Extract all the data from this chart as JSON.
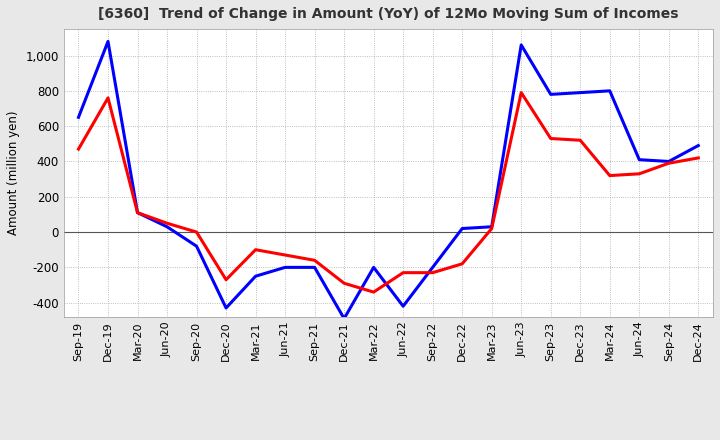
{
  "title": "[6360]  Trend of Change in Amount (YoY) of 12Mo Moving Sum of Incomes",
  "ylabel": "Amount (million yen)",
  "ylim": [
    -480,
    1150
  ],
  "yticks": [
    -400,
    -200,
    0,
    200,
    400,
    600,
    800,
    1000
  ],
  "background_color": "#e8e8e8",
  "plot_bg_color": "#ffffff",
  "grid_color": "#aaaaaa",
  "x_labels": [
    "Sep-19",
    "Dec-19",
    "Mar-20",
    "Jun-20",
    "Sep-20",
    "Dec-20",
    "Mar-21",
    "Jun-21",
    "Sep-21",
    "Dec-21",
    "Mar-22",
    "Jun-22",
    "Sep-22",
    "Dec-22",
    "Mar-23",
    "Jun-23",
    "Sep-23",
    "Dec-23",
    "Mar-24",
    "Jun-24",
    "Sep-24",
    "Dec-24"
  ],
  "ordinary_income": [
    650,
    1080,
    110,
    30,
    -80,
    -430,
    -250,
    -200,
    -200,
    -490,
    -200,
    -420,
    -200,
    20,
    30,
    1060,
    780,
    790,
    800,
    410,
    400,
    490
  ],
  "net_income": [
    470,
    760,
    110,
    50,
    0,
    -270,
    -100,
    -130,
    -160,
    -290,
    -340,
    -230,
    -230,
    -180,
    20,
    790,
    530,
    520,
    320,
    330,
    390,
    420
  ],
  "ordinary_color": "#0000ff",
  "net_color": "#ff0000",
  "line_width": 2.2
}
